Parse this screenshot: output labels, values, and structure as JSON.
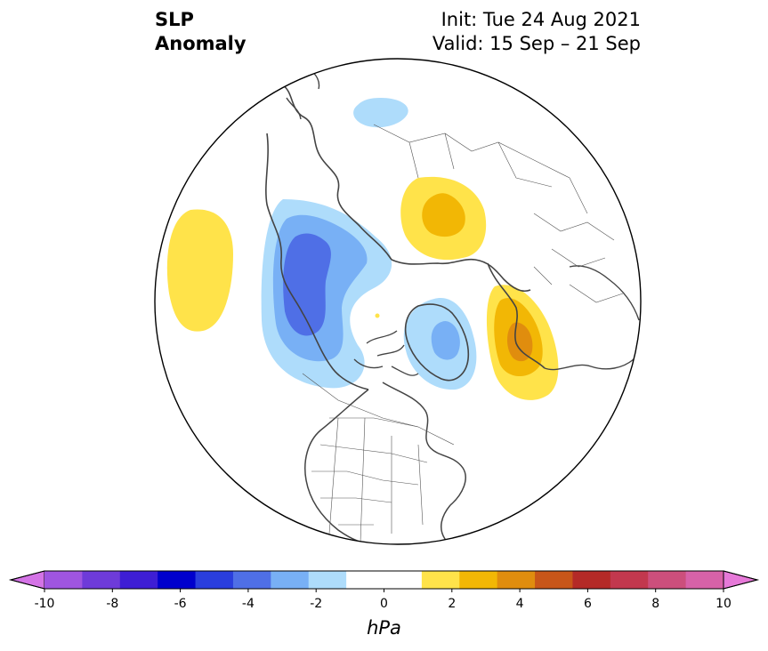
{
  "title": {
    "line1": "SLP",
    "line2": "Anomaly"
  },
  "info": {
    "init": "Init: Tue 24 Aug 2021",
    "valid": "Valid: 15 Sep – 21 Sep"
  },
  "colorbar": {
    "units": "hPa",
    "min": -10,
    "max": 10,
    "step": 1,
    "tick_values": [
      -10,
      -8,
      -6,
      -4,
      -2,
      0,
      2,
      4,
      6,
      8,
      10
    ],
    "tick_labels": [
      "-10",
      "-8",
      "-6",
      "-4",
      "-2",
      "0",
      "2",
      "4",
      "6",
      "8",
      "10"
    ],
    "colors": [
      "#9f55e0",
      "#6e3bd9",
      "#3e1ed4",
      "#0000cd",
      "#2a3edd",
      "#4f6fe6",
      "#78b0f5",
      "#aedcfb",
      "#ffffff",
      "#ffffff",
      "#ffe34a",
      "#f2b705",
      "#e08d0e",
      "#c85619",
      "#b42a27",
      "#c2384e",
      "#cc4f7c",
      "#d762a8"
    ],
    "extend_low_color": "#d473e6",
    "extend_high_color": "#e679d8"
  },
  "map": {
    "projection": "north-polar-stereographic",
    "anomaly_centers": [
      {
        "region": "North Pacific (west of Alaska)",
        "sign": "positive",
        "peak_hPa": 1.5
      },
      {
        "region": "Gulf of Alaska / western Canada",
        "sign": "negative",
        "peak_hPa": -4
      },
      {
        "region": "Greenland",
        "sign": "negative",
        "peak_hPa": -3
      },
      {
        "region": "Northern Siberia",
        "sign": "positive",
        "peak_hPa": 3
      },
      {
        "region": "Northeast Atlantic / British Isles",
        "sign": "positive",
        "peak_hPa": 4
      },
      {
        "region": "Central Siberia",
        "sign": "negative",
        "peak_hPa": -1.5
      }
    ]
  }
}
